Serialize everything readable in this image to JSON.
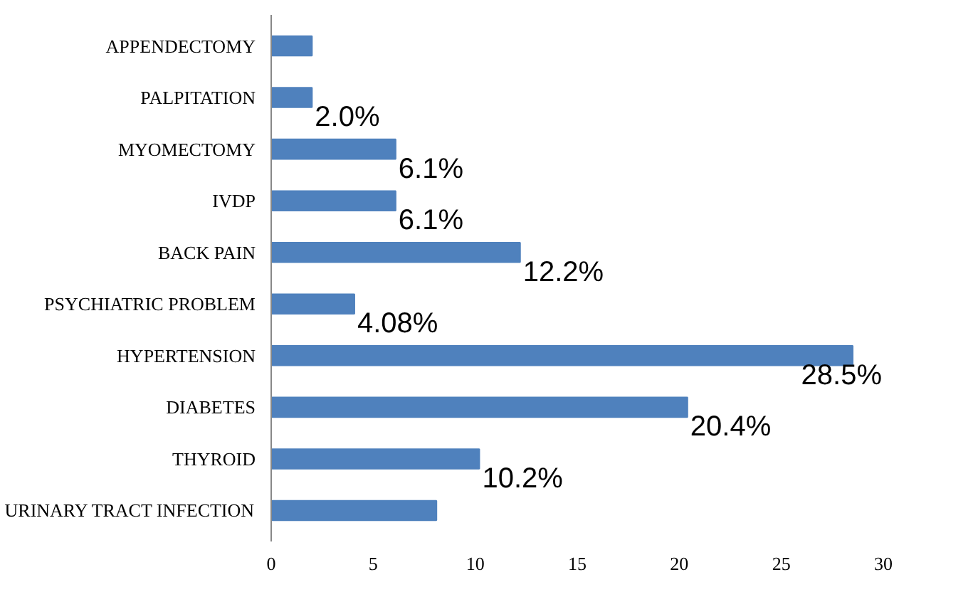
{
  "chart_data": {
    "type": "bar",
    "orientation": "horizontal",
    "categories": [
      "APPENDECTOMY",
      "PALPITATION",
      "MYOMECTOMY",
      "IVDP",
      "BACK PAIN",
      "PSYCHIATRIC PROBLEM",
      "HYPERTENSION",
      "DIABETES",
      "THYROID",
      "URINARY TRACT INFECTION"
    ],
    "values": [
      2,
      2,
      6.1,
      6.1,
      12.2,
      4.08,
      28.5,
      20.4,
      10.2,
      8.1
    ],
    "value_labels": [
      null,
      "2.0%",
      "6.1%",
      "6.1%",
      "12.2%",
      "4.08%",
      "28.5%",
      "20.4%",
      "10.2%",
      null
    ],
    "color": "#4f81bd",
    "xlim": [
      0,
      30
    ],
    "xticks": [
      0,
      5,
      10,
      15,
      20,
      25,
      30
    ],
    "grid": false
  }
}
